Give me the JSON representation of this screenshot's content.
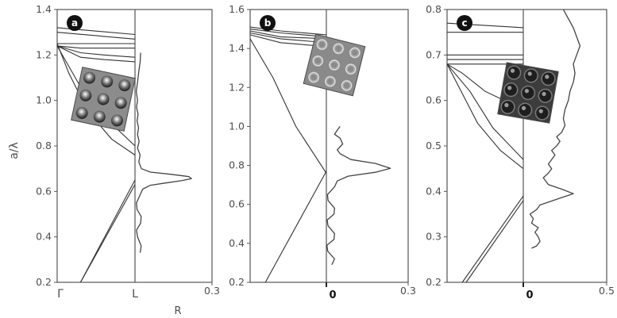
{
  "figure": {
    "ylabel": "a/λ",
    "shared_xlabel": "R"
  },
  "chart_data": [
    {
      "panel_label": "a",
      "type": "line",
      "band_axis_labels": [
        "Γ",
        "L"
      ],
      "ylim": [
        0.2,
        1.4
      ],
      "y_ticks": [
        "0.2",
        "0.4",
        "0.6",
        "0.8",
        "1.0",
        "1.2",
        "1.4"
      ],
      "reflectance_xlim": [
        0,
        0.3
      ],
      "reflectance_x_tick_max": "0.3",
      "inset": "inverse-opal-structure-a",
      "reflectance_series": {
        "name": "",
        "points": [
          [
            0.02,
            0.33
          ],
          [
            0.024,
            0.36
          ],
          [
            0.01,
            0.4
          ],
          [
            0.006,
            0.43
          ],
          [
            0.022,
            0.46
          ],
          [
            0.024,
            0.49
          ],
          [
            0.008,
            0.52
          ],
          [
            0.006,
            0.55
          ],
          [
            0.018,
            0.58
          ],
          [
            0.03,
            0.61
          ],
          [
            0.06,
            0.627
          ],
          [
            0.12,
            0.637
          ],
          [
            0.18,
            0.647
          ],
          [
            0.22,
            0.656
          ],
          [
            0.21,
            0.665
          ],
          [
            0.14,
            0.675
          ],
          [
            0.06,
            0.685
          ],
          [
            0.025,
            0.7
          ],
          [
            0.015,
            0.73
          ],
          [
            0.02,
            0.76
          ],
          [
            0.01,
            0.79
          ],
          [
            0.016,
            0.82
          ],
          [
            0.01,
            0.85
          ],
          [
            0.014,
            0.88
          ],
          [
            0.008,
            0.91
          ],
          [
            0.012,
            0.94
          ],
          [
            0.006,
            0.97
          ],
          [
            0.01,
            1.0
          ],
          [
            0.005,
            1.04
          ],
          [
            0.01,
            1.08
          ],
          [
            0.014,
            1.12
          ],
          [
            0.02,
            1.17
          ],
          [
            0.022,
            1.21
          ]
        ]
      },
      "band_lines": [
        [
          [
            0.3,
            0.2
          ],
          [
            1.0,
            0.63
          ]
        ],
        [
          [
            0.3,
            0.2
          ],
          [
            1.0,
            0.65
          ]
        ],
        [
          [
            0.0,
            1.25
          ],
          [
            0.15,
            1.12
          ],
          [
            0.4,
            0.95
          ],
          [
            0.7,
            0.83
          ],
          [
            1.0,
            0.76
          ]
        ],
        [
          [
            0.0,
            1.24
          ],
          [
            0.3,
            1.06
          ],
          [
            0.6,
            0.93
          ],
          [
            1.0,
            0.8
          ]
        ],
        [
          [
            0.0,
            1.24
          ],
          [
            0.3,
            1.19
          ],
          [
            0.6,
            1.18
          ],
          [
            1.0,
            1.17
          ]
        ],
        [
          [
            0.0,
            1.24
          ],
          [
            0.3,
            1.21
          ],
          [
            0.6,
            1.2
          ],
          [
            1.0,
            1.19
          ]
        ],
        [
          [
            0.0,
            1.24
          ],
          [
            0.3,
            1.23
          ],
          [
            1.0,
            1.23
          ]
        ],
        [
          [
            0.0,
            1.25
          ],
          [
            0.4,
            1.25
          ],
          [
            1.0,
            1.25
          ]
        ],
        [
          [
            0.0,
            1.3
          ],
          [
            1.0,
            1.27
          ]
        ],
        [
          [
            0.0,
            1.32
          ],
          [
            1.0,
            1.29
          ]
        ]
      ]
    },
    {
      "panel_label": "b",
      "type": "line",
      "band_axis_labels": [
        "",
        ""
      ],
      "ylim": [
        0.2,
        1.6
      ],
      "y_ticks": [
        "0.2",
        "0.4",
        "0.6",
        "0.8",
        "1.0",
        "1.2",
        "1.4",
        "1.6"
      ],
      "reflectance_xlim": [
        0,
        0.3
      ],
      "reflectance_x_tick_min": "0",
      "reflectance_x_tick_max": "0.3",
      "inset": "inverse-opal-structure-b",
      "reflectance_series": {
        "name": "",
        "points": [
          [
            0.02,
            0.29
          ],
          [
            0.03,
            0.32
          ],
          [
            0.005,
            0.36
          ],
          [
            0.002,
            0.39
          ],
          [
            0.028,
            0.42
          ],
          [
            0.03,
            0.45
          ],
          [
            0.006,
            0.49
          ],
          [
            0.003,
            0.52
          ],
          [
            0.028,
            0.55
          ],
          [
            0.03,
            0.58
          ],
          [
            0.006,
            0.62
          ],
          [
            0.004,
            0.65
          ],
          [
            0.03,
            0.69
          ],
          [
            0.04,
            0.72
          ],
          [
            0.08,
            0.745
          ],
          [
            0.18,
            0.765
          ],
          [
            0.235,
            0.785
          ],
          [
            0.18,
            0.81
          ],
          [
            0.09,
            0.83
          ],
          [
            0.05,
            0.86
          ],
          [
            0.04,
            0.88
          ],
          [
            0.06,
            0.91
          ],
          [
            0.05,
            0.94
          ],
          [
            0.03,
            0.96
          ],
          [
            0.04,
            0.98
          ],
          [
            0.05,
            1.0
          ]
        ]
      },
      "band_lines": [
        [
          [
            0.2,
            0.2
          ],
          [
            1.0,
            0.77
          ]
        ],
        [
          [
            0.0,
            1.45
          ],
          [
            0.3,
            1.25
          ],
          [
            0.6,
            1.0
          ],
          [
            1.0,
            0.76
          ]
        ],
        [
          [
            0.0,
            1.47
          ],
          [
            0.4,
            1.43
          ],
          [
            1.0,
            1.41
          ]
        ],
        [
          [
            0.0,
            1.48
          ],
          [
            0.4,
            1.45
          ],
          [
            1.0,
            1.43
          ]
        ],
        [
          [
            0.0,
            1.49
          ],
          [
            0.4,
            1.46
          ],
          [
            1.0,
            1.45
          ]
        ],
        [
          [
            0.0,
            1.5
          ],
          [
            0.4,
            1.48
          ],
          [
            1.0,
            1.46
          ]
        ],
        [
          [
            0.0,
            1.51
          ],
          [
            0.4,
            1.49
          ],
          [
            1.0,
            1.47
          ]
        ]
      ]
    },
    {
      "panel_label": "c",
      "type": "line",
      "band_axis_labels": [
        "",
        ""
      ],
      "ylim": [
        0.2,
        0.8
      ],
      "y_ticks": [
        "0.2",
        "0.3",
        "0.4",
        "0.5",
        "0.6",
        "0.7",
        "0.8"
      ],
      "reflectance_xlim": [
        0,
        0.5
      ],
      "reflectance_x_tick_min": "0",
      "reflectance_x_tick_max": "0.5",
      "inset": "inverse-opal-structure-c",
      "reflectance_series": {
        "name": "",
        "points": [
          [
            0.05,
            0.275
          ],
          [
            0.08,
            0.28
          ],
          [
            0.1,
            0.29
          ],
          [
            0.09,
            0.3
          ],
          [
            0.07,
            0.31
          ],
          [
            0.09,
            0.32
          ],
          [
            0.05,
            0.33
          ],
          [
            0.06,
            0.34
          ],
          [
            0.04,
            0.35
          ],
          [
            0.08,
            0.36
          ],
          [
            0.1,
            0.37
          ],
          [
            0.22,
            0.385
          ],
          [
            0.3,
            0.395
          ],
          [
            0.23,
            0.405
          ],
          [
            0.15,
            0.415
          ],
          [
            0.12,
            0.43
          ],
          [
            0.15,
            0.44
          ],
          [
            0.17,
            0.45
          ],
          [
            0.15,
            0.46
          ],
          [
            0.17,
            0.47
          ],
          [
            0.19,
            0.48
          ],
          [
            0.17,
            0.49
          ],
          [
            0.2,
            0.5
          ],
          [
            0.22,
            0.51
          ],
          [
            0.2,
            0.52
          ],
          [
            0.23,
            0.53
          ],
          [
            0.25,
            0.545
          ],
          [
            0.24,
            0.56
          ],
          [
            0.25,
            0.58
          ],
          [
            0.27,
            0.6
          ],
          [
            0.28,
            0.62
          ],
          [
            0.3,
            0.64
          ],
          [
            0.31,
            0.66
          ],
          [
            0.3,
            0.68
          ],
          [
            0.32,
            0.7
          ],
          [
            0.34,
            0.72
          ],
          [
            0.32,
            0.74
          ],
          [
            0.3,
            0.76
          ],
          [
            0.27,
            0.78
          ],
          [
            0.24,
            0.8
          ]
        ]
      },
      "band_lines": [
        [
          [
            0.2,
            0.2
          ],
          [
            1.0,
            0.39
          ]
        ],
        [
          [
            0.25,
            0.2
          ],
          [
            1.0,
            0.38
          ]
        ],
        [
          [
            0.0,
            0.68
          ],
          [
            0.4,
            0.55
          ],
          [
            0.7,
            0.49
          ],
          [
            1.0,
            0.45
          ]
        ],
        [
          [
            0.0,
            0.68
          ],
          [
            0.3,
            0.62
          ],
          [
            0.6,
            0.54
          ],
          [
            1.0,
            0.47
          ]
        ],
        [
          [
            0.0,
            0.68
          ],
          [
            0.2,
            0.66
          ],
          [
            0.5,
            0.62
          ],
          [
            1.0,
            0.58
          ]
        ],
        [
          [
            0.0,
            0.68
          ],
          [
            0.5,
            0.68
          ],
          [
            1.0,
            0.68
          ]
        ],
        [
          [
            0.0,
            0.69
          ],
          [
            0.5,
            0.69
          ],
          [
            1.0,
            0.69
          ]
        ],
        [
          [
            0.0,
            0.7
          ],
          [
            0.5,
            0.7
          ],
          [
            1.0,
            0.7
          ]
        ],
        [
          [
            0.0,
            0.75
          ],
          [
            0.5,
            0.75
          ],
          [
            1.0,
            0.75
          ]
        ],
        [
          [
            0.0,
            0.77
          ],
          [
            1.0,
            0.76
          ]
        ]
      ]
    }
  ]
}
